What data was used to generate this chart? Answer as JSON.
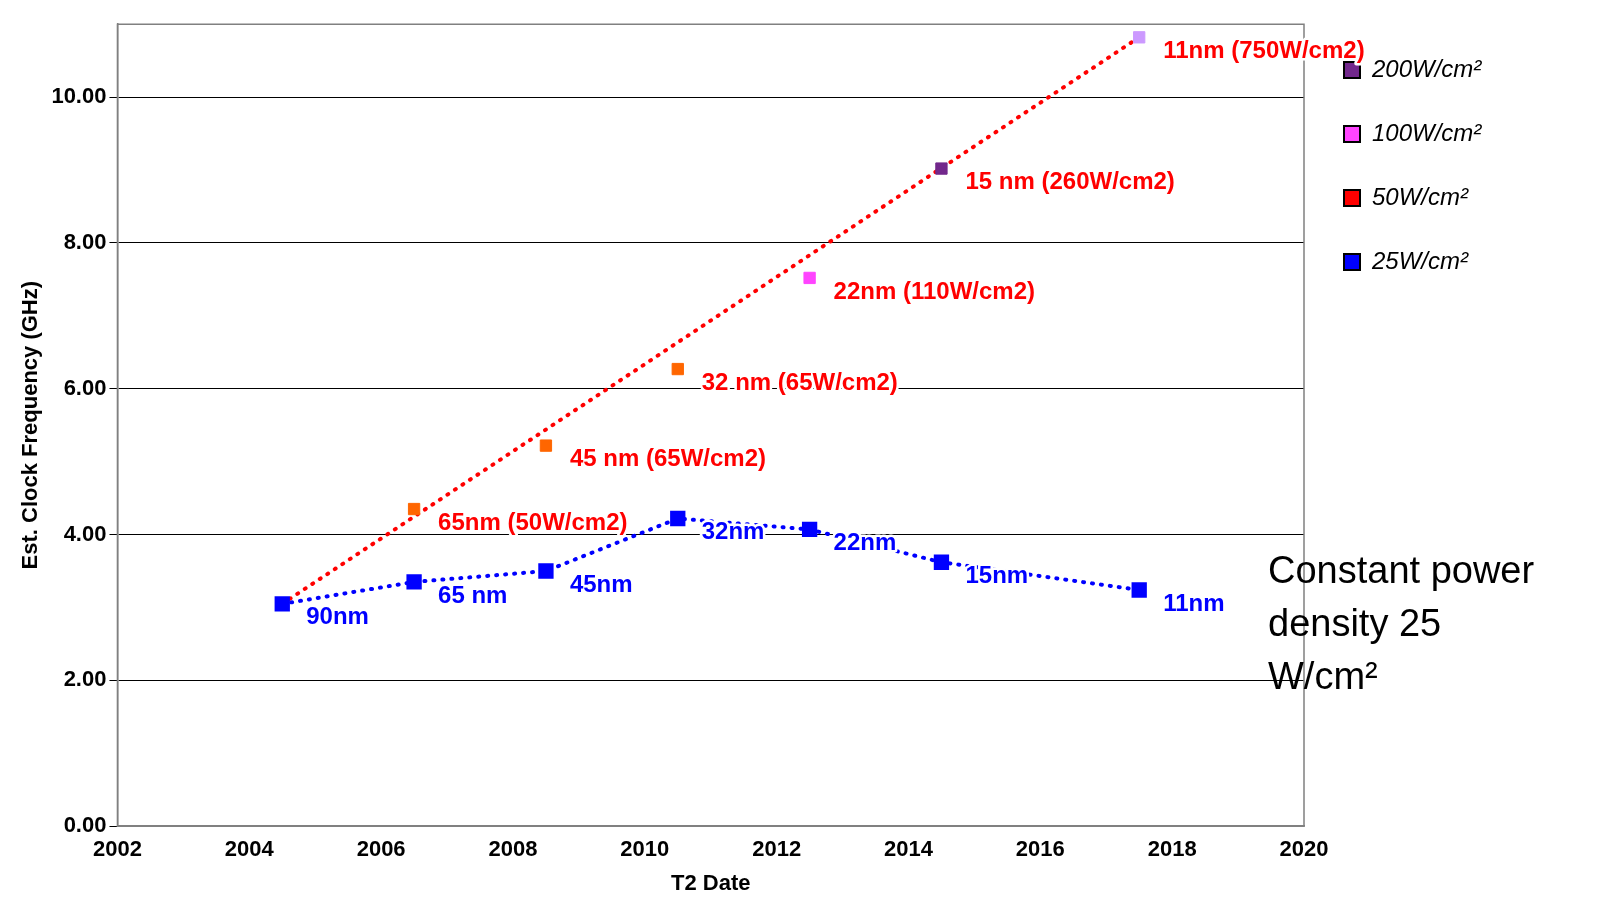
{
  "chart_data": {
    "type": "scatter",
    "xlabel": "T2 Date",
    "ylabel": "Est. Clock Frequency (GHz)",
    "xlim": [
      2002,
      2020
    ],
    "xticks": [
      2002,
      2004,
      2006,
      2008,
      2010,
      2012,
      2014,
      2016,
      2018,
      2020
    ],
    "ylim": [
      0,
      11
    ],
    "yticks": [
      {
        "value": 0,
        "label": "0.00"
      },
      {
        "value": 2,
        "label": "2.00"
      },
      {
        "value": 4,
        "label": "4.00"
      },
      {
        "value": 6,
        "label": "6.00"
      },
      {
        "value": 8,
        "label": "8.00"
      },
      {
        "value": 10,
        "label": "10.00"
      }
    ],
    "grid": "y",
    "legend": "right",
    "marker": "square",
    "series": [
      {
        "name": "200W/cm²",
        "color": "#72288c",
        "x": [
          2014.5
        ],
        "values": [
          9.02
        ]
      },
      {
        "name": "100W/cm²",
        "color": "#ff44ff",
        "x": [
          2012.5
        ],
        "values": [
          7.52
        ]
      },
      {
        "name": "50W/cm²",
        "color": "#ff0000",
        "colors": [
          "#ff6600",
          "#ff6600",
          "#ff6600"
        ],
        "x": [
          2006.5,
          2008.5,
          2010.5
        ],
        "values": [
          4.35,
          5.22,
          6.27
        ]
      },
      {
        "name": "25W/cm²",
        "type": "line",
        "color": "#0000ff",
        "line_style": "dotted",
        "x": [
          2004.5,
          2006.5,
          2008.5,
          2010.5,
          2012.5,
          2014.5,
          2017.5
        ],
        "values": [
          3.05,
          3.35,
          3.5,
          4.22,
          4.07,
          3.62,
          3.24
        ]
      },
      {
        "color": "#cc99ff",
        "x": [
          2017.5
        ],
        "values": [
          10.82
        ]
      },
      {
        "type": "line",
        "color": "#ff0000",
        "line_style": "dotted",
        "marker": "none",
        "x": [
          2004.5,
          2017.5
        ],
        "values": [
          3.05,
          10.82
        ]
      }
    ],
    "annotations": [
      {
        "text": "90nm",
        "x": 2004.5,
        "y": 3.05
      },
      {
        "text": "65 nm",
        "x": 2006.5,
        "y": 3.35
      },
      {
        "text": "45nm",
        "x": 2008.5,
        "y": 3.5
      },
      {
        "text": "32nm",
        "x": 2010.5,
        "y": 4.22
      },
      {
        "text": "22nm",
        "x": 2012.5,
        "y": 4.07
      },
      {
        "text": "15nm",
        "x": 2014.5,
        "y": 3.62
      },
      {
        "text": "11nm",
        "x": 2017.5,
        "y": 3.24
      },
      {
        "text": "65nm (50W/cm2)",
        "x": 2006.5,
        "y": 4.35
      },
      {
        "text": "45 nm (65W/cm2)",
        "x": 2008.5,
        "y": 5.22
      },
      {
        "text": "32 nm (65W/cm2)",
        "x": 2010.5,
        "y": 6.27
      },
      {
        "text": "22nm (110W/cm2)",
        "x": 2012.5,
        "y": 7.52
      },
      {
        "text": "15 nm (260W/cm2)",
        "x": 2014.5,
        "y": 9.02
      },
      {
        "text": "11nm (750W/cm2)",
        "x": 2017.5,
        "y": 10.82
      },
      "Constant power density 25 W/cm²"
    ]
  }
}
